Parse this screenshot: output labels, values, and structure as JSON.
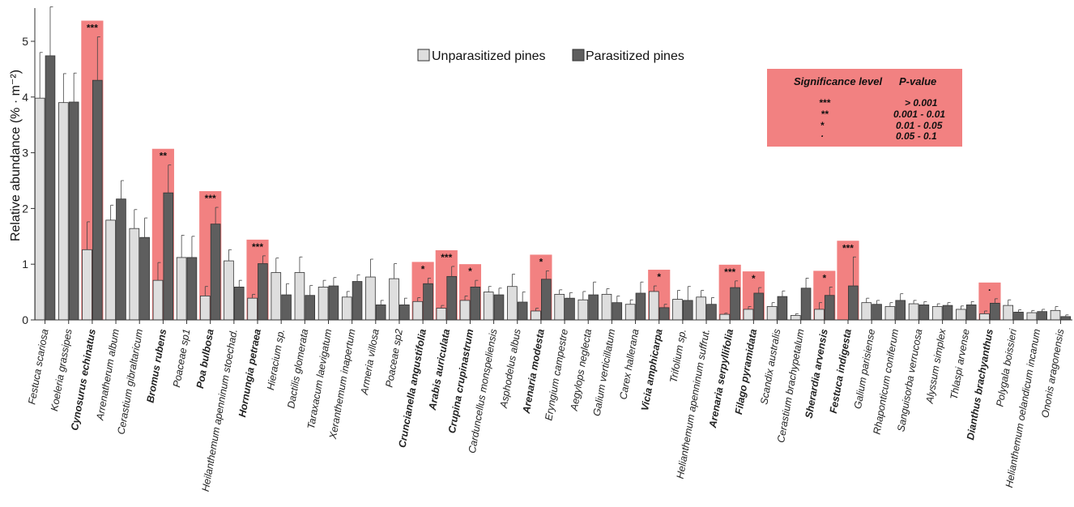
{
  "chart_data": {
    "type": "bar",
    "ylabel": "Relative abundance (% · m⁻²)",
    "ylim": [
      0,
      5.6
    ],
    "yticks": [
      0,
      1,
      2,
      3,
      4,
      5
    ],
    "legend_placement": "top-center",
    "series": [
      {
        "name": "Unparasitized pines",
        "color": "#dedede"
      },
      {
        "name": "Parasitized pines",
        "color": "#5e5e5e"
      }
    ],
    "highlight_color": "#f28181",
    "significance_table": {
      "headers": [
        "Significance level",
        "P-value"
      ],
      "rows": [
        {
          "level": "***",
          "p": "> 0.001"
        },
        {
          "level": "**",
          "p": "0.001 - 0.01"
        },
        {
          "level": "*",
          "p": "0.01 - 0.05"
        },
        {
          "level": "·",
          "p": "0.05 - 0.1"
        }
      ]
    },
    "categories": [
      {
        "name": "Festuca scariosa",
        "u": 3.98,
        "ue": 0.82,
        "p": 4.74,
        "pe": 0.88,
        "sig": ""
      },
      {
        "name": "Koeleria grassipes",
        "u": 3.9,
        "ue": 0.52,
        "p": 3.91,
        "pe": 0.52,
        "sig": ""
      },
      {
        "name": "Cynosurus echinatus",
        "u": 1.26,
        "ue": 0.5,
        "p": 4.3,
        "pe": 0.78,
        "sig": "***"
      },
      {
        "name": "Arrenatherum album",
        "u": 1.79,
        "ue": 0.27,
        "p": 2.17,
        "pe": 0.33,
        "sig": ""
      },
      {
        "name": "Cerastium gibraltaricum",
        "u": 1.64,
        "ue": 0.34,
        "p": 1.48,
        "pe": 0.35,
        "sig": ""
      },
      {
        "name": "Bromus rubens",
        "u": 0.71,
        "ue": 0.32,
        "p": 2.28,
        "pe": 0.5,
        "sig": "**"
      },
      {
        "name": "Poaceae sp1",
        "u": 1.12,
        "ue": 0.4,
        "p": 1.12,
        "pe": 0.38,
        "sig": ""
      },
      {
        "name": "Poa bulbosa",
        "u": 0.43,
        "ue": 0.17,
        "p": 1.72,
        "pe": 0.3,
        "sig": "***"
      },
      {
        "name": "Heilanthemum apenninum stoechad.",
        "u": 1.06,
        "ue": 0.2,
        "p": 0.59,
        "pe": 0.12,
        "sig": ""
      },
      {
        "name": "Hornungia petraea",
        "u": 0.39,
        "ue": 0.07,
        "p": 1.01,
        "pe": 0.14,
        "sig": "***"
      },
      {
        "name": "Hieracium sp.",
        "u": 0.85,
        "ue": 0.26,
        "p": 0.45,
        "pe": 0.2,
        "sig": ""
      },
      {
        "name": "Dactilis glomerata",
        "u": 0.85,
        "ue": 0.28,
        "p": 0.44,
        "pe": 0.18,
        "sig": ""
      },
      {
        "name": "Taraxacum laevigatum",
        "u": 0.59,
        "ue": 0.12,
        "p": 0.61,
        "pe": 0.15,
        "sig": ""
      },
      {
        "name": "Xeranthemum inapertum",
        "u": 0.41,
        "ue": 0.1,
        "p": 0.69,
        "pe": 0.12,
        "sig": ""
      },
      {
        "name": "Armeria villosa",
        "u": 0.77,
        "ue": 0.32,
        "p": 0.27,
        "pe": 0.08,
        "sig": ""
      },
      {
        "name": "Poaceae sp2",
        "u": 0.74,
        "ue": 0.27,
        "p": 0.27,
        "pe": 0.12,
        "sig": ""
      },
      {
        "name": "Cruncianella angustifolia",
        "u": 0.33,
        "ue": 0.07,
        "p": 0.65,
        "pe": 0.1,
        "sig": "*"
      },
      {
        "name": "Arabis auriculata",
        "u": 0.21,
        "ue": 0.05,
        "p": 0.78,
        "pe": 0.18,
        "sig": "***"
      },
      {
        "name": "Crupina crupinastrum",
        "u": 0.35,
        "ue": 0.08,
        "p": 0.59,
        "pe": 0.12,
        "sig": "*"
      },
      {
        "name": "Carduncellus monspeliensis",
        "u": 0.5,
        "ue": 0.1,
        "p": 0.45,
        "pe": 0.12,
        "sig": ""
      },
      {
        "name": "Asphodelus albus",
        "u": 0.6,
        "ue": 0.22,
        "p": 0.32,
        "pe": 0.18,
        "sig": ""
      },
      {
        "name": "Arenaria modesta",
        "u": 0.16,
        "ue": 0.05,
        "p": 0.73,
        "pe": 0.15,
        "sig": "*"
      },
      {
        "name": "Eryngium campestre",
        "u": 0.46,
        "ue": 0.08,
        "p": 0.39,
        "pe": 0.1,
        "sig": ""
      },
      {
        "name": "Aegylops neglecta",
        "u": 0.36,
        "ue": 0.15,
        "p": 0.45,
        "pe": 0.23,
        "sig": ""
      },
      {
        "name": "Galium verticillatum",
        "u": 0.46,
        "ue": 0.1,
        "p": 0.31,
        "pe": 0.12,
        "sig": ""
      },
      {
        "name": "Carex hallerana",
        "u": 0.28,
        "ue": 0.08,
        "p": 0.48,
        "pe": 0.2,
        "sig": ""
      },
      {
        "name": "Vicia amphicarpa",
        "u": 0.51,
        "ue": 0.1,
        "p": 0.22,
        "pe": 0.06,
        "sig": "*"
      },
      {
        "name": "Trifolium sp.",
        "u": 0.37,
        "ue": 0.16,
        "p": 0.35,
        "pe": 0.25,
        "sig": ""
      },
      {
        "name": "Helianthemum apenninum suffrut.",
        "u": 0.41,
        "ue": 0.12,
        "p": 0.28,
        "pe": 0.12,
        "sig": ""
      },
      {
        "name": "Arenaria serpyllifolia",
        "u": 0.1,
        "ue": 0.02,
        "p": 0.58,
        "pe": 0.12,
        "sig": "***"
      },
      {
        "name": "Filago pyramidata",
        "u": 0.19,
        "ue": 0.05,
        "p": 0.48,
        "pe": 0.1,
        "sig": "*"
      },
      {
        "name": "Scandix australis",
        "u": 0.24,
        "ue": 0.07,
        "p": 0.42,
        "pe": 0.1,
        "sig": ""
      },
      {
        "name": "Cerastium brachypetalum",
        "u": 0.08,
        "ue": 0.03,
        "p": 0.57,
        "pe": 0.18,
        "sig": ""
      },
      {
        "name": "Sherardia arvensis",
        "u": 0.19,
        "ue": 0.12,
        "p": 0.44,
        "pe": 0.15,
        "sig": "*"
      },
      {
        "name": "Festuca indigesta",
        "u": 0.0,
        "ue": 0.0,
        "p": 0.61,
        "pe": 0.52,
        "sig": "***"
      },
      {
        "name": "Galium parisiense",
        "u": 0.31,
        "ue": 0.08,
        "p": 0.28,
        "pe": 0.07,
        "sig": ""
      },
      {
        "name": "Rhaponticum coniferum",
        "u": 0.24,
        "ue": 0.07,
        "p": 0.35,
        "pe": 0.12,
        "sig": ""
      },
      {
        "name": "Sanguisorba verrucosa",
        "u": 0.29,
        "ue": 0.06,
        "p": 0.27,
        "pe": 0.06,
        "sig": ""
      },
      {
        "name": "Alyssum simplex",
        "u": 0.24,
        "ue": 0.05,
        "p": 0.26,
        "pe": 0.05,
        "sig": ""
      },
      {
        "name": "Thlaspi arvense",
        "u": 0.19,
        "ue": 0.06,
        "p": 0.27,
        "pe": 0.06,
        "sig": ""
      },
      {
        "name": "Dianthus brachyanthus",
        "u": 0.11,
        "ue": 0.05,
        "p": 0.3,
        "pe": 0.08,
        "sig": "·"
      },
      {
        "name": "Polygala boissieri",
        "u": 0.26,
        "ue": 0.1,
        "p": 0.14,
        "pe": 0.04,
        "sig": ""
      },
      {
        "name": "Helianthemum oelandicum incanum",
        "u": 0.13,
        "ue": 0.04,
        "p": 0.15,
        "pe": 0.04,
        "sig": ""
      },
      {
        "name": "Ononis aragonensis",
        "u": 0.17,
        "ue": 0.07,
        "p": 0.06,
        "pe": 0.03,
        "sig": ""
      }
    ]
  }
}
